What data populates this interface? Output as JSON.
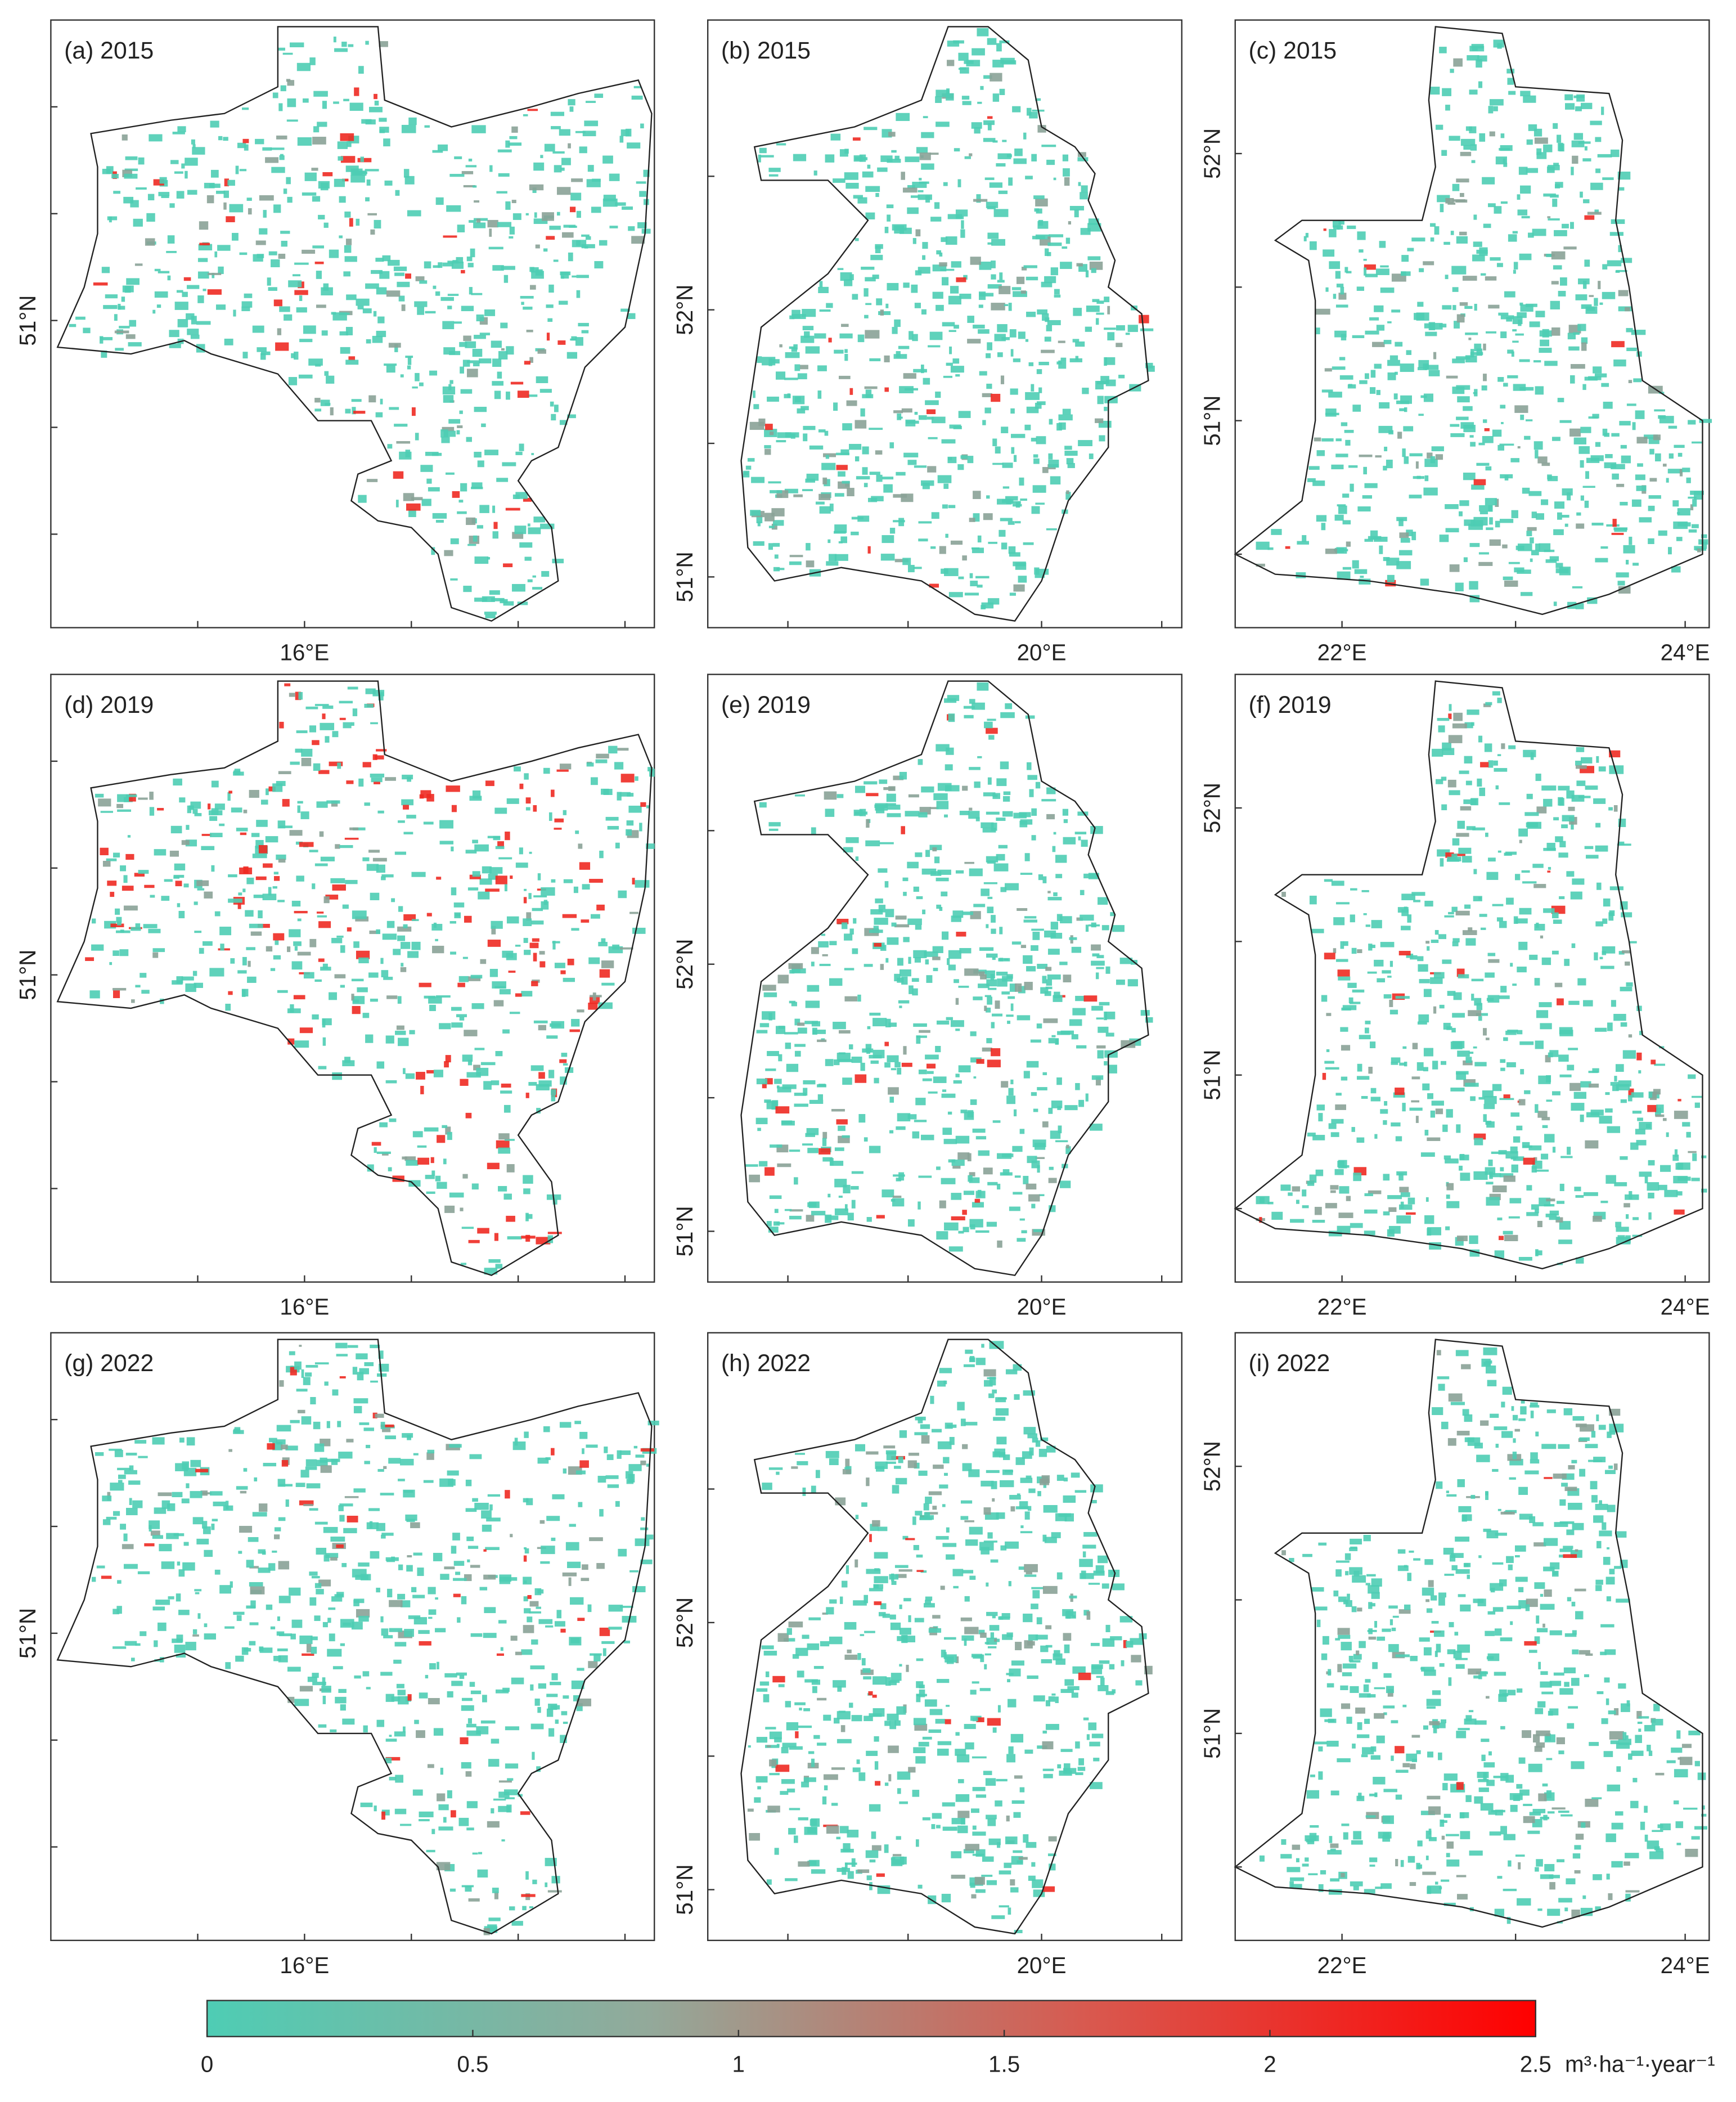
{
  "panels": [
    {
      "label": "(a) 2015",
      "xticks": [
        "16°E"
      ],
      "yticks": [
        "51°N"
      ]
    },
    {
      "label": "(b) 2015",
      "xticks": [
        "20°E"
      ],
      "yticks": [
        "52°N",
        "51°N"
      ]
    },
    {
      "label": "(c) 2015",
      "xticks": [
        "22°E",
        "24°E"
      ],
      "yticks": [
        "52°N",
        "51°N"
      ]
    },
    {
      "label": "(d) 2019",
      "xticks": [
        "16°E"
      ],
      "yticks": [
        "51°N"
      ]
    },
    {
      "label": "(e) 2019",
      "xticks": [
        "20°E"
      ],
      "yticks": [
        "52°N",
        "51°N"
      ]
    },
    {
      "label": "(f) 2019",
      "xticks": [
        "22°E",
        "24°E"
      ],
      "yticks": [
        "52°N",
        "51°N"
      ]
    },
    {
      "label": "(g) 2022",
      "xticks": [
        "16°E"
      ],
      "yticks": [
        "51°N"
      ]
    },
    {
      "label": "(h) 2022",
      "xticks": [
        "20°E"
      ],
      "yticks": [
        "52°N",
        "51°N"
      ]
    },
    {
      "label": "(i) 2022",
      "xticks": [
        "22°E",
        "24°E"
      ],
      "yticks": [
        "52°N",
        "51°N"
      ]
    }
  ],
  "colorbar": {
    "lim": [
      0,
      2.5
    ],
    "ticks": [
      0,
      0.5,
      1,
      1.5,
      2,
      2.5
    ],
    "unit": "m³·ha⁻¹·year⁻¹",
    "colors": [
      "#4ecdb4",
      "#93a99a",
      "#d9584e",
      "#ff0000"
    ]
  }
}
